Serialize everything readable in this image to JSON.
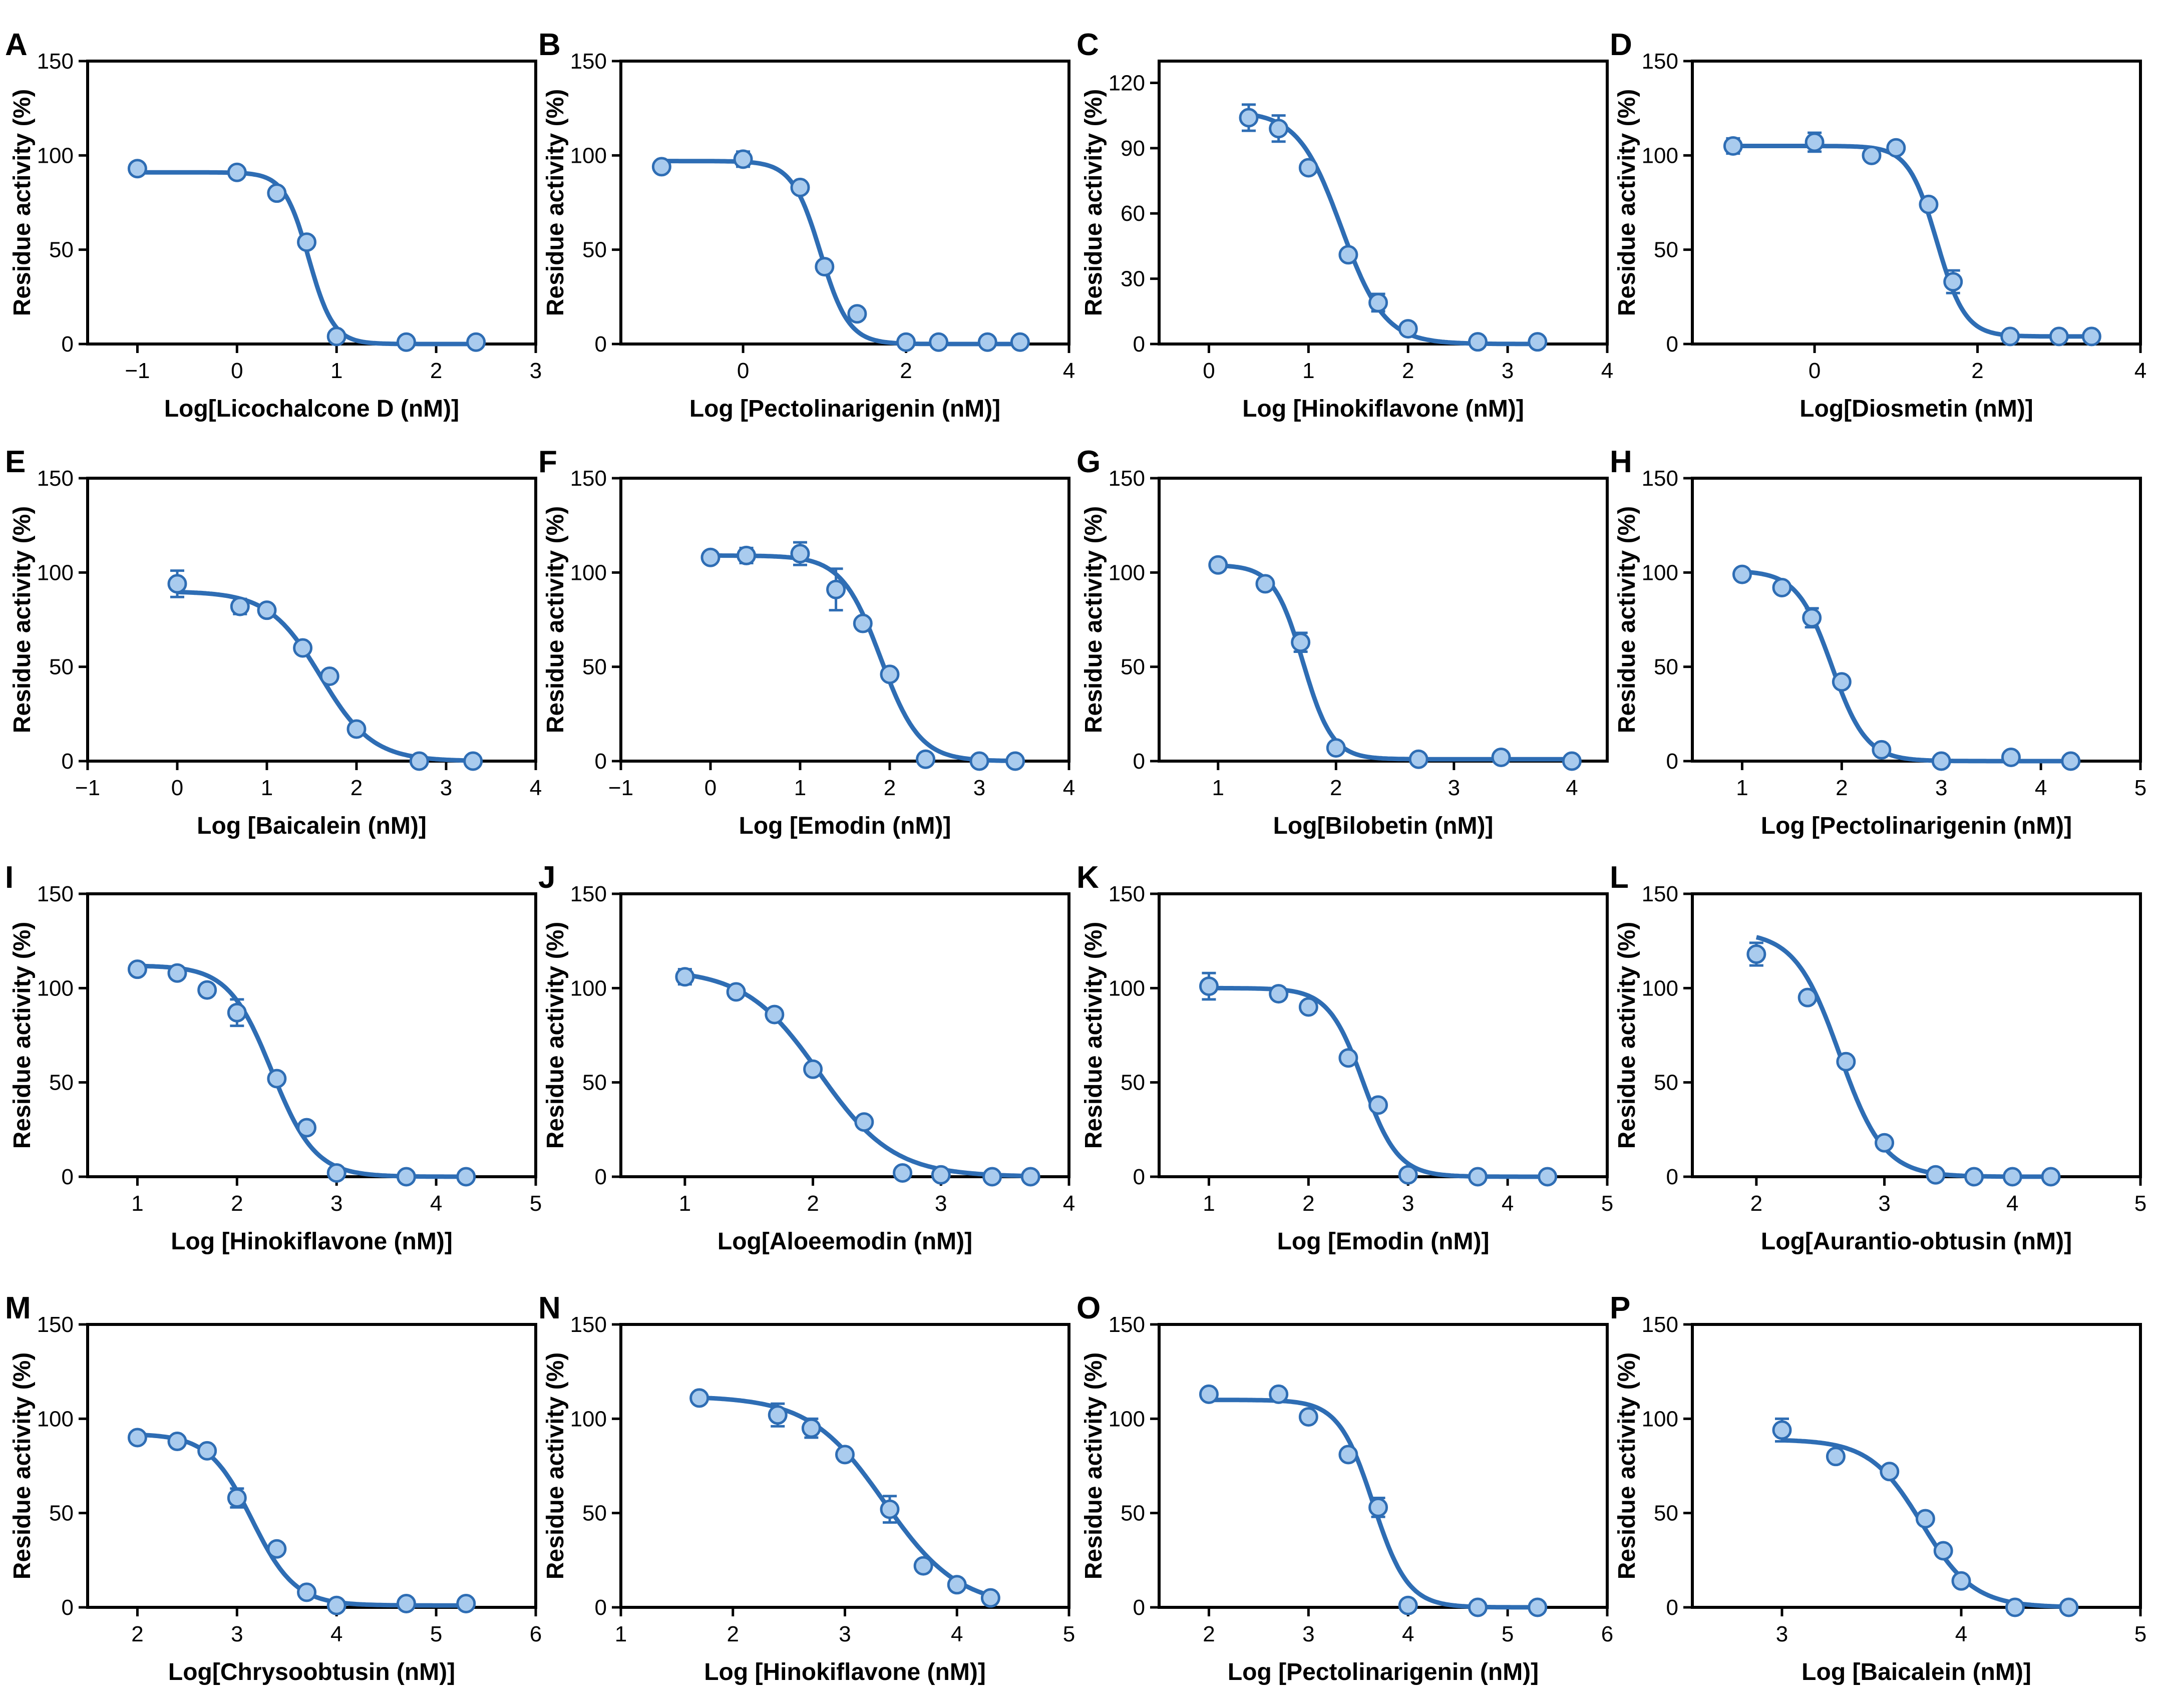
{
  "style": {
    "line_color": "#2e6db4",
    "point_fill": "#a9cbee",
    "axis_color": "#000000"
  },
  "chart_data": [
    {
      "panel": "A",
      "type": "scatter",
      "ylabel": "Residue activity (%)",
      "xlabel": "Log[Licochalcone D (nM)]",
      "xlim": [
        -1.5,
        3
      ],
      "ylim": [
        0,
        150
      ],
      "xticks": [
        -1,
        0,
        1,
        2,
        3
      ],
      "yticks": [
        0,
        50,
        100,
        150
      ],
      "x": [
        -1,
        0,
        0.4,
        0.7,
        1,
        1.7,
        2.4
      ],
      "y": [
        93,
        91,
        80,
        54,
        4,
        1,
        1
      ],
      "err": [
        0,
        0,
        0,
        0,
        0,
        0,
        0
      ],
      "fit": {
        "top": 91,
        "bottom": 0,
        "logic50": 0.72,
        "hill": -3.5
      }
    },
    {
      "panel": "B",
      "type": "scatter",
      "ylabel": "Residue activity (%)",
      "xlabel": "Log [Pectolinarigenin (nM)]",
      "xlim": [
        -1.5,
        4
      ],
      "ylim": [
        0,
        150
      ],
      "xticks": [
        0,
        2,
        4
      ],
      "yticks": [
        0,
        50,
        100,
        150
      ],
      "x": [
        -1,
        0,
        0.7,
        1,
        1.4,
        2,
        2.4,
        3,
        3.4
      ],
      "y": [
        94,
        98,
        83,
        41,
        16,
        1,
        1,
        1,
        1
      ],
      "err": [
        0,
        4,
        0,
        0,
        0,
        0,
        0,
        0,
        0
      ],
      "fit": {
        "top": 97,
        "bottom": 0,
        "logic50": 0.95,
        "hill": -2.5
      }
    },
    {
      "panel": "C",
      "type": "scatter",
      "ylabel": "Residue activity (%)",
      "xlabel": "Log [Hinokiflavone (nM)]",
      "xlim": [
        -0.5,
        4
      ],
      "ylim": [
        0,
        130
      ],
      "xticks": [
        0,
        1,
        2,
        3,
        4
      ],
      "yticks": [
        0,
        30,
        60,
        90,
        120
      ],
      "x": [
        0.4,
        0.7,
        1,
        1.4,
        1.7,
        2,
        2.7,
        3.3
      ],
      "y": [
        104,
        99,
        81,
        41,
        19,
        7,
        1,
        1
      ],
      "err": [
        6,
        6,
        0,
        0,
        4,
        0,
        0,
        0
      ],
      "fit": {
        "top": 107,
        "bottom": 0,
        "logic50": 1.33,
        "hill": -2.0
      }
    },
    {
      "panel": "D",
      "type": "scatter",
      "ylabel": "Residue activity (%)",
      "xlabel": "Log[Diosmetin (nM)]",
      "xlim": [
        -1.5,
        4
      ],
      "ylim": [
        0,
        150
      ],
      "xticks": [
        0,
        2,
        4
      ],
      "yticks": [
        0,
        50,
        100,
        150
      ],
      "x": [
        -1,
        0,
        0.7,
        1,
        1.4,
        1.7,
        2.4,
        3,
        3.4
      ],
      "y": [
        105,
        107,
        100,
        104,
        74,
        33,
        4,
        4,
        4
      ],
      "err": [
        4,
        5,
        0,
        0,
        0,
        6,
        0,
        0,
        0
      ],
      "fit": {
        "top": 105,
        "bottom": 4,
        "logic50": 1.5,
        "hill": -2.5
      }
    },
    {
      "panel": "E",
      "type": "scatter",
      "ylabel": "Residue activity (%)",
      "xlabel": "Log [Baicalein (nM)]",
      "xlim": [
        -1,
        4
      ],
      "ylim": [
        0,
        150
      ],
      "xticks": [
        -1,
        0,
        1,
        2,
        3,
        4
      ],
      "yticks": [
        0,
        50,
        100,
        150
      ],
      "x": [
        0,
        0.7,
        1,
        1.4,
        1.7,
        2,
        2.7,
        3.3
      ],
      "y": [
        94,
        82,
        80,
        60,
        45,
        17,
        0,
        0
      ],
      "err": [
        7,
        4,
        0,
        0,
        0,
        0,
        0,
        0
      ],
      "fit": {
        "top": 90,
        "bottom": 0,
        "logic50": 1.6,
        "hill": -1.5
      }
    },
    {
      "panel": "F",
      "type": "scatter",
      "ylabel": "Residue activity (%)",
      "xlabel": "Log [Emodin (nM)]",
      "xlim": [
        -1,
        4
      ],
      "ylim": [
        0,
        150
      ],
      "xticks": [
        -1,
        0,
        1,
        2,
        3,
        4
      ],
      "yticks": [
        0,
        50,
        100,
        150
      ],
      "x": [
        0,
        0.4,
        1,
        1.4,
        1.7,
        2,
        2.4,
        3,
        3.4
      ],
      "y": [
        108,
        109,
        110,
        91,
        73,
        46,
        1,
        0,
        0
      ],
      "err": [
        0,
        4,
        6,
        11,
        0,
        0,
        0,
        0,
        0
      ],
      "fit": {
        "top": 109,
        "bottom": 0,
        "logic50": 1.9,
        "hill": -2.0
      }
    },
    {
      "panel": "G",
      "type": "scatter",
      "ylabel": "Residue activity (%)",
      "xlabel": "Log[Bilobetin (nM)]",
      "xlim": [
        0.5,
        4.3
      ],
      "ylim": [
        0,
        150
      ],
      "xticks": [
        1,
        2,
        3,
        4
      ],
      "yticks": [
        0,
        50,
        100,
        150
      ],
      "x": [
        1,
        1.4,
        1.7,
        2,
        2.7,
        3.4,
        4
      ],
      "y": [
        104,
        94,
        63,
        7,
        1,
        2,
        0
      ],
      "err": [
        0,
        0,
        5,
        0,
        0,
        0,
        0
      ],
      "fit": {
        "top": 104,
        "bottom": 1,
        "logic50": 1.72,
        "hill": -3.5
      }
    },
    {
      "panel": "H",
      "type": "scatter",
      "ylabel": "Residue activity (%)",
      "xlabel": "Log [Pectolinarigenin (nM)]",
      "xlim": [
        0.5,
        5
      ],
      "ylim": [
        0,
        150
      ],
      "xticks": [
        1,
        2,
        3,
        4,
        5
      ],
      "yticks": [
        0,
        50,
        100,
        150
      ],
      "x": [
        1,
        1.4,
        1.7,
        2,
        2.4,
        3,
        3.7,
        4.3
      ],
      "y": [
        99,
        92,
        76,
        42,
        6,
        0,
        2,
        0
      ],
      "err": [
        0,
        0,
        5,
        0,
        0,
        0,
        0,
        0
      ],
      "fit": {
        "top": 101,
        "bottom": 0,
        "logic50": 1.9,
        "hill": -2.5
      }
    },
    {
      "panel": "I",
      "type": "scatter",
      "ylabel": "Residue activity (%)",
      "xlabel": "Log [Hinokiflavone (nM)]",
      "xlim": [
        0.5,
        5
      ],
      "ylim": [
        0,
        150
      ],
      "xticks": [
        1,
        2,
        3,
        4,
        5
      ],
      "yticks": [
        0,
        50,
        100,
        150
      ],
      "x": [
        1,
        1.4,
        1.7,
        2,
        2.4,
        2.7,
        3,
        3.7,
        4.3
      ],
      "y": [
        110,
        108,
        99,
        87,
        52,
        26,
        2,
        0,
        0
      ],
      "err": [
        0,
        0,
        0,
        7,
        0,
        0,
        0,
        0,
        0
      ],
      "fit": {
        "top": 112,
        "bottom": 0,
        "logic50": 2.35,
        "hill": -2.0
      }
    },
    {
      "panel": "J",
      "type": "scatter",
      "ylabel": "Residue activity (%)",
      "xlabel": "Log[Aloeemodin (nM)]",
      "xlim": [
        0.5,
        4
      ],
      "ylim": [
        0,
        150
      ],
      "xticks": [
        1,
        2,
        3,
        4
      ],
      "yticks": [
        0,
        50,
        100,
        150
      ],
      "x": [
        1,
        1.4,
        1.7,
        2,
        2.4,
        2.7,
        3,
        3.4,
        3.7
      ],
      "y": [
        106,
        98,
        86,
        57,
        29,
        2,
        1,
        0,
        0
      ],
      "err": [
        4,
        0,
        0,
        0,
        0,
        0,
        0,
        0,
        0
      ],
      "fit": {
        "top": 110,
        "bottom": 0,
        "logic50": 2.05,
        "hill": -1.5
      }
    },
    {
      "panel": "K",
      "type": "scatter",
      "ylabel": "Residue activity (%)",
      "xlabel": "Log [Emodin (nM)]",
      "xlim": [
        0.5,
        5
      ],
      "ylim": [
        0,
        150
      ],
      "xticks": [
        1,
        2,
        3,
        4,
        5
      ],
      "yticks": [
        0,
        50,
        100,
        150
      ],
      "x": [
        1,
        1.7,
        2,
        2.4,
        2.7,
        3,
        3.7,
        4.4
      ],
      "y": [
        101,
        97,
        90,
        63,
        38,
        1,
        0,
        0
      ],
      "err": [
        7,
        0,
        0,
        0,
        0,
        0,
        0,
        0
      ],
      "fit": {
        "top": 100,
        "bottom": 0,
        "logic50": 2.55,
        "hill": -2.5
      }
    },
    {
      "panel": "L",
      "type": "scatter",
      "ylabel": "Residue activity (%)",
      "xlabel": "Log[Aurantio-obtusin (nM)]",
      "xlim": [
        1.5,
        5
      ],
      "ylim": [
        0,
        150
      ],
      "xticks": [
        2,
        3,
        4,
        5
      ],
      "yticks": [
        0,
        50,
        100,
        150
      ],
      "x": [
        2,
        2.4,
        2.7,
        3,
        3.4,
        3.7,
        4,
        4.3
      ],
      "y": [
        118,
        95,
        61,
        18,
        1,
        0,
        0,
        0
      ],
      "err": [
        6,
        0,
        0,
        0,
        0,
        0,
        0,
        0
      ],
      "fit": {
        "top": 130,
        "bottom": 0,
        "logic50": 2.65,
        "hill": -2.5
      }
    },
    {
      "panel": "M",
      "type": "scatter",
      "ylabel": "Residue activity (%)",
      "xlabel": "Log[Chrysoobtusin (nM)]",
      "xlim": [
        1.5,
        6
      ],
      "ylim": [
        0,
        150
      ],
      "xticks": [
        2,
        3,
        4,
        5,
        6
      ],
      "yticks": [
        0,
        50,
        100,
        150
      ],
      "x": [
        2,
        2.4,
        2.7,
        3,
        3.4,
        3.7,
        4,
        4.7,
        5.3
      ],
      "y": [
        90,
        88,
        83,
        58,
        31,
        8,
        1,
        2,
        2
      ],
      "err": [
        0,
        0,
        0,
        5,
        0,
        0,
        0,
        0,
        0
      ],
      "fit": {
        "top": 92,
        "bottom": 1,
        "logic50": 3.15,
        "hill": -2.0
      }
    },
    {
      "panel": "N",
      "type": "scatter",
      "ylabel": "Residue activity (%)",
      "xlabel": "Log [Hinokiflavone (nM)]",
      "xlim": [
        1,
        5
      ],
      "ylim": [
        0,
        150
      ],
      "xticks": [
        1,
        2,
        3,
        4,
        5
      ],
      "yticks": [
        0,
        50,
        100,
        150
      ],
      "x": [
        1.7,
        2.4,
        2.7,
        3,
        3.4,
        3.7,
        4,
        4.3
      ],
      "y": [
        111,
        102,
        95,
        81,
        52,
        22,
        12,
        5
      ],
      "err": [
        0,
        6,
        5,
        0,
        7,
        0,
        0,
        0
      ],
      "fit": {
        "top": 112,
        "bottom": 0,
        "logic50": 3.35,
        "hill": -1.3
      }
    },
    {
      "panel": "O",
      "type": "scatter",
      "ylabel": "Residue activity (%)",
      "xlabel": "Log [Pectolinarigenin (nM)]",
      "xlim": [
        1.5,
        6
      ],
      "ylim": [
        0,
        150
      ],
      "xticks": [
        2,
        3,
        4,
        5,
        6
      ],
      "yticks": [
        0,
        50,
        100,
        150
      ],
      "x": [
        2,
        2.7,
        3,
        3.4,
        3.7,
        4,
        4.7,
        5.3
      ],
      "y": [
        113,
        113,
        101,
        81,
        53,
        1,
        0,
        0
      ],
      "err": [
        0,
        0,
        0,
        0,
        5,
        0,
        0,
        0
      ],
      "fit": {
        "top": 110,
        "bottom": 0,
        "logic50": 3.65,
        "hill": -2.5
      }
    },
    {
      "panel": "P",
      "type": "scatter",
      "ylabel": "Residue activity (%)",
      "xlabel": "Log [Baicalein (nM)]",
      "xlim": [
        2.5,
        5
      ],
      "ylim": [
        0,
        150
      ],
      "xticks": [
        3,
        4,
        5
      ],
      "yticks": [
        0,
        50,
        100,
        150
      ],
      "x": [
        3,
        3.3,
        3.6,
        3.8,
        3.9,
        4,
        4.3,
        4.6
      ],
      "y": [
        94,
        80,
        72,
        47,
        30,
        14,
        0,
        0
      ],
      "err": [
        6,
        0,
        0,
        0,
        0,
        0,
        0,
        0
      ],
      "fit": {
        "top": 89,
        "bottom": 0,
        "logic50": 3.78,
        "hill": -3.0
      }
    }
  ]
}
